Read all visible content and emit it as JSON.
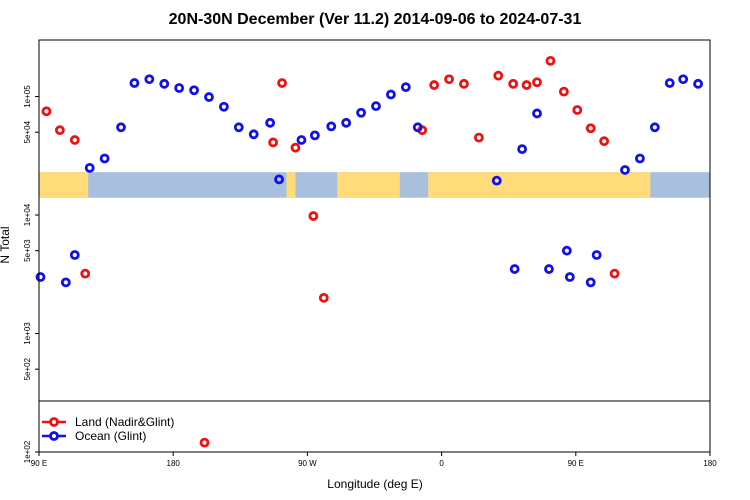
{
  "chart_data": {
    "type": "scatter",
    "title": "20N-30N December (Ver 11.2)   2014-09-06 to 2024-07-31",
    "xlabel": "Longitude (deg E)",
    "ylabel": "N Total",
    "x_axis": {
      "range_deg_east_unwrapped": [
        90,
        450
      ],
      "ticks": [
        {
          "value": 90,
          "label": "90 E"
        },
        {
          "value": 180,
          "label": "180"
        },
        {
          "value": 270,
          "label": "90 W"
        },
        {
          "value": 360,
          "label": "0"
        },
        {
          "value": 450,
          "label": "90 E"
        },
        {
          "value": 540,
          "label": "180"
        }
      ]
    },
    "x_range_unwrapped": [
      90,
      540
    ],
    "y_axis": {
      "scale": "log",
      "range": [
        100,
        300000
      ],
      "ticks": [
        {
          "value": 100,
          "label": "1e+02"
        },
        {
          "value": 500,
          "label": "5e+02"
        },
        {
          "value": 1000,
          "label": "1e+03"
        },
        {
          "value": 5000,
          "label": "5e+03"
        },
        {
          "value": 10000,
          "label": "1e+04"
        },
        {
          "value": 50000,
          "label": "5e+04"
        },
        {
          "value": 100000,
          "label": "1e+05"
        }
      ]
    },
    "grid": false,
    "legend_position": "bottom-left",
    "map_strip": {
      "y_range": [
        14000,
        23000
      ],
      "land_color": "#FFDB7A",
      "ocean_color": "#A8BFDE"
    },
    "series": [
      {
        "name": "Land (Nadir&Glint)",
        "color": "#EE1111",
        "points": [
          {
            "x": 95,
            "y": 75000
          },
          {
            "x": 104,
            "y": 52000
          },
          {
            "x": 114,
            "y": 43000
          },
          {
            "x": 121,
            "y": 3200
          },
          {
            "x": 201,
            "y": 120
          },
          {
            "x": 247,
            "y": 41000
          },
          {
            "x": 253,
            "y": 130000
          },
          {
            "x": 262,
            "y": 37000
          },
          {
            "x": 274,
            "y": 9800
          },
          {
            "x": 281,
            "y": 2000
          },
          {
            "x": 347,
            "y": 52000
          },
          {
            "x": 355,
            "y": 125000
          },
          {
            "x": 365,
            "y": 140000
          },
          {
            "x": 375,
            "y": 128000
          },
          {
            "x": 385,
            "y": 45000
          },
          {
            "x": 398,
            "y": 150000
          },
          {
            "x": 408,
            "y": 128000
          },
          {
            "x": 417,
            "y": 125000
          },
          {
            "x": 424,
            "y": 132000
          },
          {
            "x": 433,
            "y": 200000
          },
          {
            "x": 442,
            "y": 110000
          },
          {
            "x": 451,
            "y": 77000
          },
          {
            "x": 460,
            "y": 54000
          },
          {
            "x": 469,
            "y": 42000
          },
          {
            "x": 476,
            "y": 3200
          }
        ]
      },
      {
        "name": "Ocean (Glint)",
        "color": "#1010EE",
        "points": [
          {
            "x": 91,
            "y": 3000
          },
          {
            "x": 108,
            "y": 2700
          },
          {
            "x": 114,
            "y": 4600
          },
          {
            "x": 124,
            "y": 25000
          },
          {
            "x": 134,
            "y": 30000
          },
          {
            "x": 145,
            "y": 55000
          },
          {
            "x": 154,
            "y": 130000
          },
          {
            "x": 164,
            "y": 140000
          },
          {
            "x": 174,
            "y": 128000
          },
          {
            "x": 184,
            "y": 118000
          },
          {
            "x": 194,
            "y": 113000
          },
          {
            "x": 204,
            "y": 99000
          },
          {
            "x": 214,
            "y": 82000
          },
          {
            "x": 224,
            "y": 55000
          },
          {
            "x": 234,
            "y": 48000
          },
          {
            "x": 245,
            "y": 60000
          },
          {
            "x": 251,
            "y": 20000
          },
          {
            "x": 266,
            "y": 43000
          },
          {
            "x": 275,
            "y": 47000
          },
          {
            "x": 286,
            "y": 56000
          },
          {
            "x": 296,
            "y": 60000
          },
          {
            "x": 306,
            "y": 73000
          },
          {
            "x": 316,
            "y": 83000
          },
          {
            "x": 326,
            "y": 104000
          },
          {
            "x": 336,
            "y": 120000
          },
          {
            "x": 344,
            "y": 55000
          },
          {
            "x": 397,
            "y": 19500
          },
          {
            "x": 409,
            "y": 3500
          },
          {
            "x": 414,
            "y": 36000
          },
          {
            "x": 424,
            "y": 72000
          },
          {
            "x": 432,
            "y": 3500
          },
          {
            "x": 444,
            "y": 5000
          },
          {
            "x": 446,
            "y": 3000
          },
          {
            "x": 460,
            "y": 2700
          },
          {
            "x": 464,
            "y": 4600
          },
          {
            "x": 483,
            "y": 24000
          },
          {
            "x": 493,
            "y": 30000
          },
          {
            "x": 503,
            "y": 55000
          },
          {
            "x": 513,
            "y": 130000
          },
          {
            "x": 522,
            "y": 140000
          },
          {
            "x": 532,
            "y": 128000
          }
        ]
      }
    ]
  }
}
